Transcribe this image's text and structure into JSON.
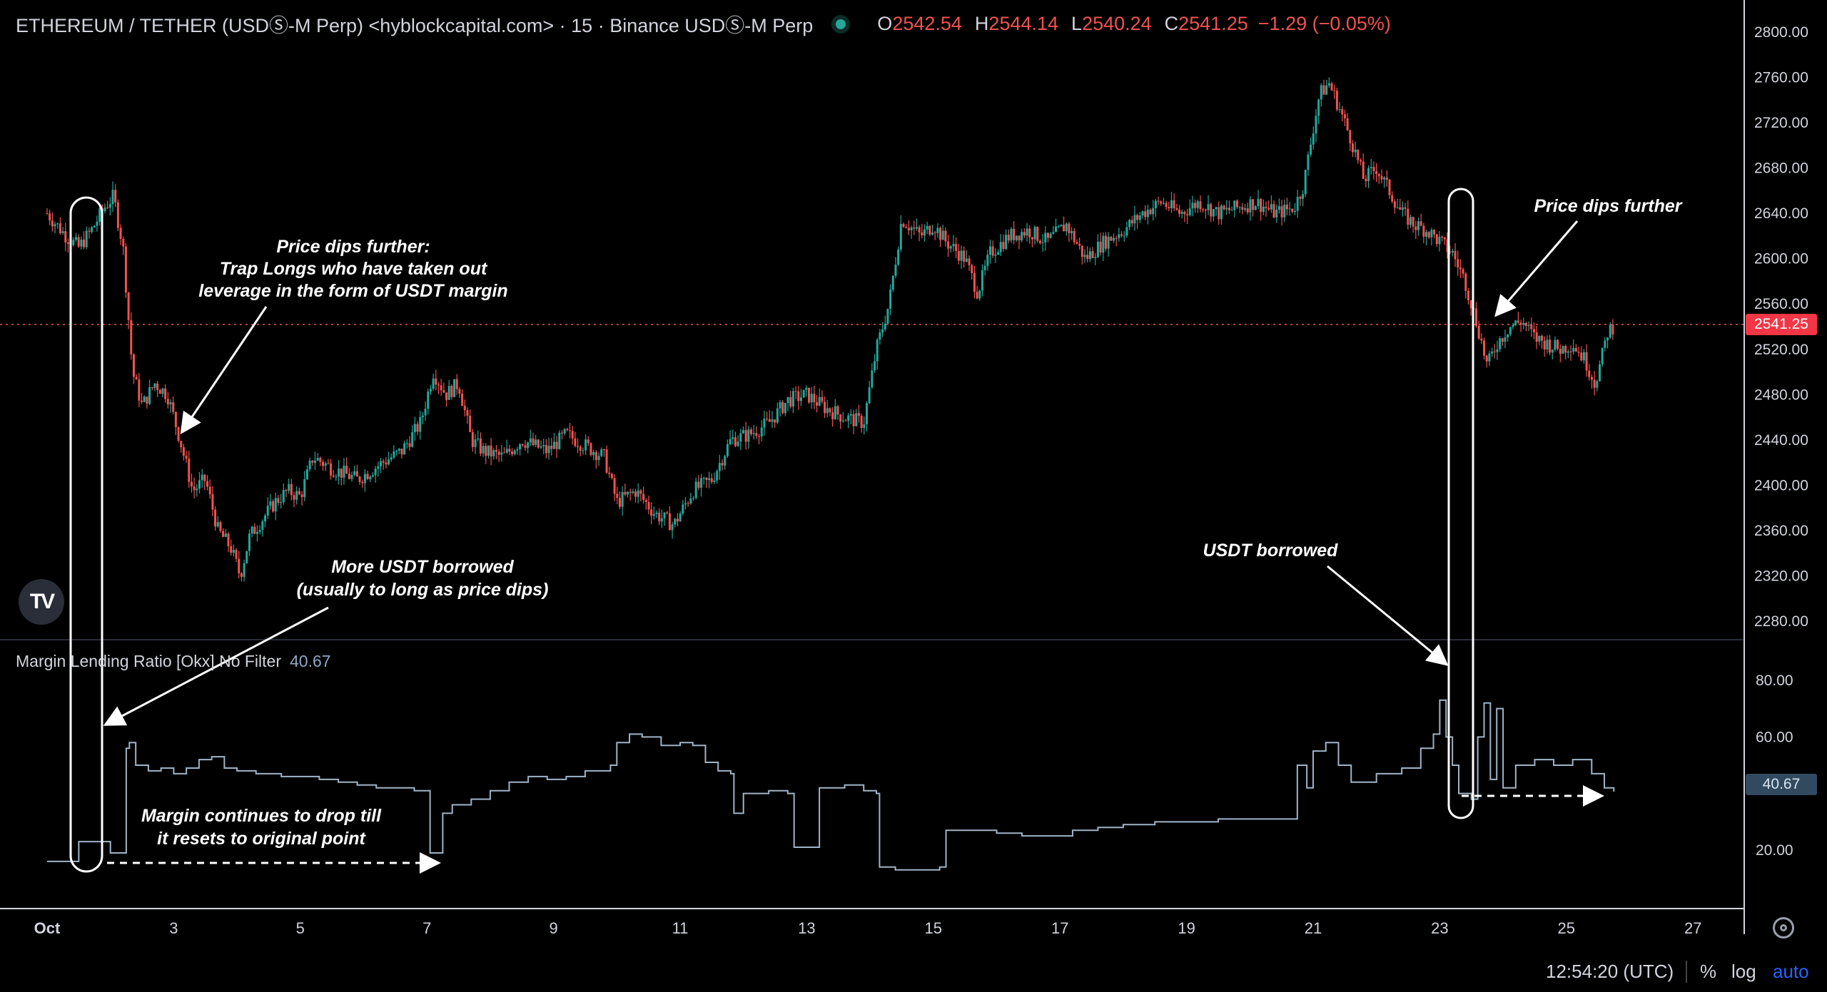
{
  "header": {
    "title": "ETHEREUM / TETHER (USDⓈ-M Perp) <hyblockcapital.com> · 15 · Binance USDⓈ-M Perp",
    "o_label": "O",
    "o_value": "2542.54",
    "h_label": "H",
    "h_value": "2544.14",
    "l_label": "L",
    "l_value": "2540.24",
    "c_label": "C",
    "c_value": "2541.25",
    "change": "−1.29 (−0.05%)"
  },
  "indicator": {
    "name": "Margin Lending Ratio [Okx] No Filter",
    "value": "40.67"
  },
  "price_axis": {
    "ticks": [
      "2800.00",
      "2760.00",
      "2720.00",
      "2680.00",
      "2640.00",
      "2600.00",
      "2560.00",
      "2520.00",
      "2480.00",
      "2440.00",
      "2400.00",
      "2360.00",
      "2320.00",
      "2280.00"
    ],
    "current": "2541.25"
  },
  "ind_axis": {
    "ticks": [
      "80.00",
      "60.00",
      "20.00"
    ],
    "current": "40.67"
  },
  "time_axis": {
    "ticks": [
      "Oct",
      "3",
      "5",
      "7",
      "9",
      "11",
      "13",
      "15",
      "17",
      "19",
      "21",
      "23",
      "25",
      "27"
    ]
  },
  "annotations": {
    "a1": [
      "Price dips further:",
      "Trap Longs who have taken out",
      "leverage in the form of USDT margin"
    ],
    "a2": [
      "More USDT borrowed",
      "(usually to long as price dips)"
    ],
    "a3": [
      "Margin continues to drop till",
      "it resets to original point"
    ],
    "a4": [
      "USDT borrowed"
    ],
    "a5": [
      "Price dips further"
    ]
  },
  "footer": {
    "time": "12:54:20 (UTC)",
    "pct": "%",
    "log": "log",
    "auto": "auto"
  },
  "logo_text": "TV",
  "colors": {
    "up": "#26a69a",
    "down": "#ef5350",
    "line": "#9fb4c7",
    "bg": "#000000",
    "grid_sep": "#2a2e39",
    "auto": "#2962ff"
  },
  "chart_data": [
    {
      "type": "candlestick",
      "title": "ETHEREUM / TETHER (USDⓈ-M Perp) · 15",
      "x_unit": "day of October (fractional)",
      "ylim": [
        2280,
        2800
      ],
      "last": 2541.25,
      "points": [
        [
          1.0,
          2640
        ],
        [
          1.3,
          2620
        ],
        [
          1.5,
          2610
        ],
        [
          1.7,
          2625
        ],
        [
          1.9,
          2645
        ],
        [
          2.05,
          2655
        ],
        [
          2.2,
          2610
        ],
        [
          2.35,
          2500
        ],
        [
          2.5,
          2470
        ],
        [
          2.7,
          2490
        ],
        [
          2.9,
          2480
        ],
        [
          3.1,
          2440
        ],
        [
          3.3,
          2395
        ],
        [
          3.5,
          2405
        ],
        [
          3.7,
          2360
        ],
        [
          3.9,
          2345
        ],
        [
          4.05,
          2320
        ],
        [
          4.2,
          2355
        ],
        [
          4.4,
          2370
        ],
        [
          4.6,
          2385
        ],
        [
          4.8,
          2395
        ],
        [
          5.0,
          2390
        ],
        [
          5.2,
          2425
        ],
        [
          5.5,
          2415
        ],
        [
          5.9,
          2405
        ],
        [
          6.3,
          2420
        ],
        [
          6.6,
          2430
        ],
        [
          6.9,
          2455
        ],
        [
          7.1,
          2500
        ],
        [
          7.3,
          2480
        ],
        [
          7.5,
          2490
        ],
        [
          7.7,
          2440
        ],
        [
          7.9,
          2430
        ],
        [
          8.2,
          2425
        ],
        [
          8.5,
          2440
        ],
        [
          8.9,
          2430
        ],
        [
          9.2,
          2445
        ],
        [
          9.5,
          2435
        ],
        [
          9.8,
          2425
        ],
        [
          10.0,
          2385
        ],
        [
          10.3,
          2395
        ],
        [
          10.6,
          2375
        ],
        [
          10.9,
          2365
        ],
        [
          11.2,
          2395
        ],
        [
          11.5,
          2405
        ],
        [
          11.8,
          2440
        ],
        [
          12.1,
          2445
        ],
        [
          12.4,
          2455
        ],
        [
          12.7,
          2475
        ],
        [
          13.0,
          2480
        ],
        [
          13.3,
          2468
        ],
        [
          13.6,
          2460
        ],
        [
          13.9,
          2455
        ],
        [
          14.1,
          2520
        ],
        [
          14.3,
          2560
        ],
        [
          14.5,
          2635
        ],
        [
          14.8,
          2620
        ],
        [
          15.0,
          2630
        ],
        [
          15.2,
          2615
        ],
        [
          15.5,
          2600
        ],
        [
          15.7,
          2570
        ],
        [
          15.9,
          2605
        ],
        [
          16.2,
          2620
        ],
        [
          16.5,
          2625
        ],
        [
          16.8,
          2615
        ],
        [
          17.1,
          2630
        ],
        [
          17.4,
          2600
        ],
        [
          17.7,
          2615
        ],
        [
          18.0,
          2625
        ],
        [
          18.3,
          2640
        ],
        [
          18.6,
          2650
        ],
        [
          18.9,
          2640
        ],
        [
          19.2,
          2650
        ],
        [
          19.5,
          2640
        ],
        [
          19.8,
          2645
        ],
        [
          20.1,
          2650
        ],
        [
          20.4,
          2640
        ],
        [
          20.7,
          2645
        ],
        [
          20.85,
          2665
        ],
        [
          21.0,
          2715
        ],
        [
          21.1,
          2745
        ],
        [
          21.25,
          2755
        ],
        [
          21.4,
          2735
        ],
        [
          21.6,
          2705
        ],
        [
          21.8,
          2670
        ],
        [
          22.0,
          2680
        ],
        [
          22.2,
          2660
        ],
        [
          22.4,
          2640
        ],
        [
          22.6,
          2630
        ],
        [
          22.8,
          2625
        ],
        [
          23.0,
          2615
        ],
        [
          23.2,
          2605
        ],
        [
          23.4,
          2580
        ],
        [
          23.6,
          2540
        ],
        [
          23.75,
          2505
        ],
        [
          23.9,
          2525
        ],
        [
          24.1,
          2540
        ],
        [
          24.3,
          2545
        ],
        [
          24.5,
          2530
        ],
        [
          24.7,
          2525
        ],
        [
          24.9,
          2520
        ],
        [
          25.1,
          2525
        ],
        [
          25.3,
          2510
        ],
        [
          25.45,
          2490
        ],
        [
          25.55,
          2510
        ],
        [
          25.65,
          2535
        ],
        [
          25.75,
          2541
        ]
      ]
    },
    {
      "type": "line",
      "title": "Margin Lending Ratio [Okx] No Filter",
      "x_unit": "day of October (fractional)",
      "ylim": [
        10,
        85
      ],
      "last": 40.67,
      "points": [
        [
          1.0,
          16
        ],
        [
          1.3,
          16
        ],
        [
          1.5,
          23
        ],
        [
          1.9,
          23
        ],
        [
          2.0,
          19
        ],
        [
          2.2,
          19
        ],
        [
          2.25,
          56
        ],
        [
          2.3,
          58
        ],
        [
          2.4,
          50
        ],
        [
          2.6,
          48
        ],
        [
          2.8,
          49
        ],
        [
          3.0,
          47
        ],
        [
          3.2,
          49
        ],
        [
          3.4,
          52
        ],
        [
          3.6,
          53
        ],
        [
          3.8,
          49
        ],
        [
          4.0,
          48
        ],
        [
          4.3,
          47
        ],
        [
          4.7,
          46
        ],
        [
          5.0,
          46
        ],
        [
          5.3,
          45
        ],
        [
          5.6,
          44
        ],
        [
          5.9,
          43
        ],
        [
          6.2,
          42
        ],
        [
          6.5,
          42
        ],
        [
          6.8,
          41
        ],
        [
          7.0,
          41
        ],
        [
          7.05,
          19
        ],
        [
          7.2,
          19
        ],
        [
          7.25,
          33
        ],
        [
          7.4,
          36
        ],
        [
          7.7,
          38
        ],
        [
          8.0,
          41
        ],
        [
          8.3,
          44
        ],
        [
          8.6,
          46
        ],
        [
          8.9,
          45
        ],
        [
          9.2,
          46
        ],
        [
          9.5,
          48
        ],
        [
          9.9,
          50
        ],
        [
          10.0,
          58
        ],
        [
          10.2,
          61
        ],
        [
          10.4,
          60
        ],
        [
          10.7,
          57
        ],
        [
          11.0,
          58
        ],
        [
          11.2,
          57
        ],
        [
          11.4,
          51
        ],
        [
          11.6,
          48
        ],
        [
          11.8,
          47
        ],
        [
          11.85,
          33
        ],
        [
          12.0,
          40
        ],
        [
          12.4,
          41
        ],
        [
          12.7,
          40
        ],
        [
          12.8,
          21
        ],
        [
          13.1,
          21
        ],
        [
          13.2,
          42
        ],
        [
          13.6,
          43
        ],
        [
          13.9,
          41
        ],
        [
          14.1,
          40
        ],
        [
          14.15,
          14
        ],
        [
          14.4,
          13
        ],
        [
          14.8,
          13
        ],
        [
          15.1,
          14
        ],
        [
          15.2,
          27
        ],
        [
          15.6,
          27
        ],
        [
          16.0,
          26
        ],
        [
          16.4,
          25
        ],
        [
          16.8,
          25
        ],
        [
          17.2,
          27
        ],
        [
          17.6,
          28
        ],
        [
          18.0,
          29
        ],
        [
          18.5,
          30
        ],
        [
          19.0,
          30
        ],
        [
          19.5,
          31
        ],
        [
          20.0,
          31
        ],
        [
          20.5,
          31
        ],
        [
          20.7,
          31
        ],
        [
          20.75,
          50
        ],
        [
          20.9,
          42
        ],
        [
          21.0,
          55
        ],
        [
          21.2,
          58
        ],
        [
          21.4,
          50
        ],
        [
          21.6,
          44
        ],
        [
          22.0,
          47
        ],
        [
          22.4,
          49
        ],
        [
          22.7,
          56
        ],
        [
          22.9,
          61
        ],
        [
          23.0,
          73
        ],
        [
          23.1,
          60
        ],
        [
          23.2,
          50
        ],
        [
          23.3,
          40
        ],
        [
          23.5,
          38
        ],
        [
          23.6,
          60
        ],
        [
          23.7,
          72
        ],
        [
          23.8,
          45
        ],
        [
          23.9,
          70
        ],
        [
          24.0,
          42
        ],
        [
          24.2,
          50
        ],
        [
          24.5,
          52
        ],
        [
          24.8,
          50
        ],
        [
          25.1,
          52
        ],
        [
          25.4,
          47
        ],
        [
          25.6,
          42
        ],
        [
          25.75,
          40.67
        ]
      ]
    }
  ]
}
